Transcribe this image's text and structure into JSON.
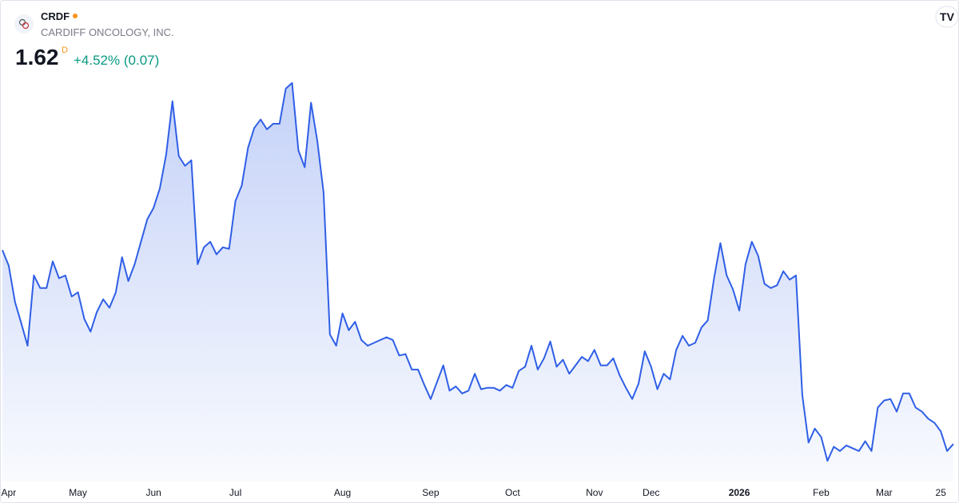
{
  "header": {
    "symbol": "CRDF",
    "name": "CARDIFF ONCOLOGY, INC.",
    "price": 1.62,
    "price_flag": "D",
    "change": "+4.52% (0.07)"
  },
  "chart_data": {
    "type": "area",
    "color": "#2f5fe6",
    "values": [
      3.0,
      2.89,
      2.63,
      2.48,
      2.32,
      2.82,
      2.73,
      2.73,
      2.92,
      2.8,
      2.82,
      2.67,
      2.7,
      2.51,
      2.42,
      2.56,
      2.65,
      2.59,
      2.7,
      2.95,
      2.78,
      2.9,
      3.06,
      3.22,
      3.3,
      3.44,
      3.68,
      4.06,
      3.67,
      3.6,
      3.64,
      2.9,
      3.02,
      3.06,
      2.97,
      3.02,
      3.01,
      3.35,
      3.46,
      3.73,
      3.87,
      3.93,
      3.86,
      3.9,
      3.9,
      4.15,
      4.19,
      3.71,
      3.59,
      4.05,
      3.78,
      3.41,
      2.4,
      2.32,
      2.55,
      2.43,
      2.49,
      2.36,
      2.32,
      2.34,
      2.36,
      2.38,
      2.36,
      2.25,
      2.26,
      2.15,
      2.15,
      2.04,
      1.94,
      2.06,
      2.18,
      2.0,
      2.03,
      1.98,
      2.0,
      2.12,
      2.01,
      2.02,
      2.02,
      2.0,
      2.04,
      2.02,
      2.14,
      2.17,
      2.32,
      2.15,
      2.23,
      2.35,
      2.17,
      2.22,
      2.12,
      2.18,
      2.24,
      2.21,
      2.29,
      2.18,
      2.18,
      2.23,
      2.11,
      2.02,
      1.94,
      2.05,
      2.28,
      2.17,
      2.01,
      2.12,
      2.08,
      2.29,
      2.39,
      2.32,
      2.34,
      2.45,
      2.5,
      2.8,
      3.05,
      2.82,
      2.72,
      2.57,
      2.9,
      3.06,
      2.96,
      2.76,
      2.73,
      2.75,
      2.85,
      2.79,
      2.82,
      1.97,
      1.63,
      1.73,
      1.67,
      1.5,
      1.6,
      1.57,
      1.61,
      1.59,
      1.57,
      1.64,
      1.57,
      1.88,
      1.93,
      1.94,
      1.85,
      1.98,
      1.98,
      1.88,
      1.85,
      1.8,
      1.77,
      1.71,
      1.57,
      1.62
    ],
    "ylim": [
      1.2,
      4.4
    ],
    "xticks": [
      {
        "value": 1,
        "label": "Apr"
      },
      {
        "value": 12,
        "label": "May"
      },
      {
        "value": 24,
        "label": "Jun"
      },
      {
        "value": 37,
        "label": "Jul"
      },
      {
        "value": 54,
        "label": "Aug"
      },
      {
        "value": 68,
        "label": "Sep"
      },
      {
        "value": 81,
        "label": "Oct"
      },
      {
        "value": 94,
        "label": "Nov"
      },
      {
        "value": 103,
        "label": "Dec"
      },
      {
        "value": 117,
        "label": "2026"
      },
      {
        "value": 130,
        "label": "Feb"
      },
      {
        "value": 140,
        "label": "Mar"
      },
      {
        "value": 149,
        "label": "25"
      }
    ]
  }
}
